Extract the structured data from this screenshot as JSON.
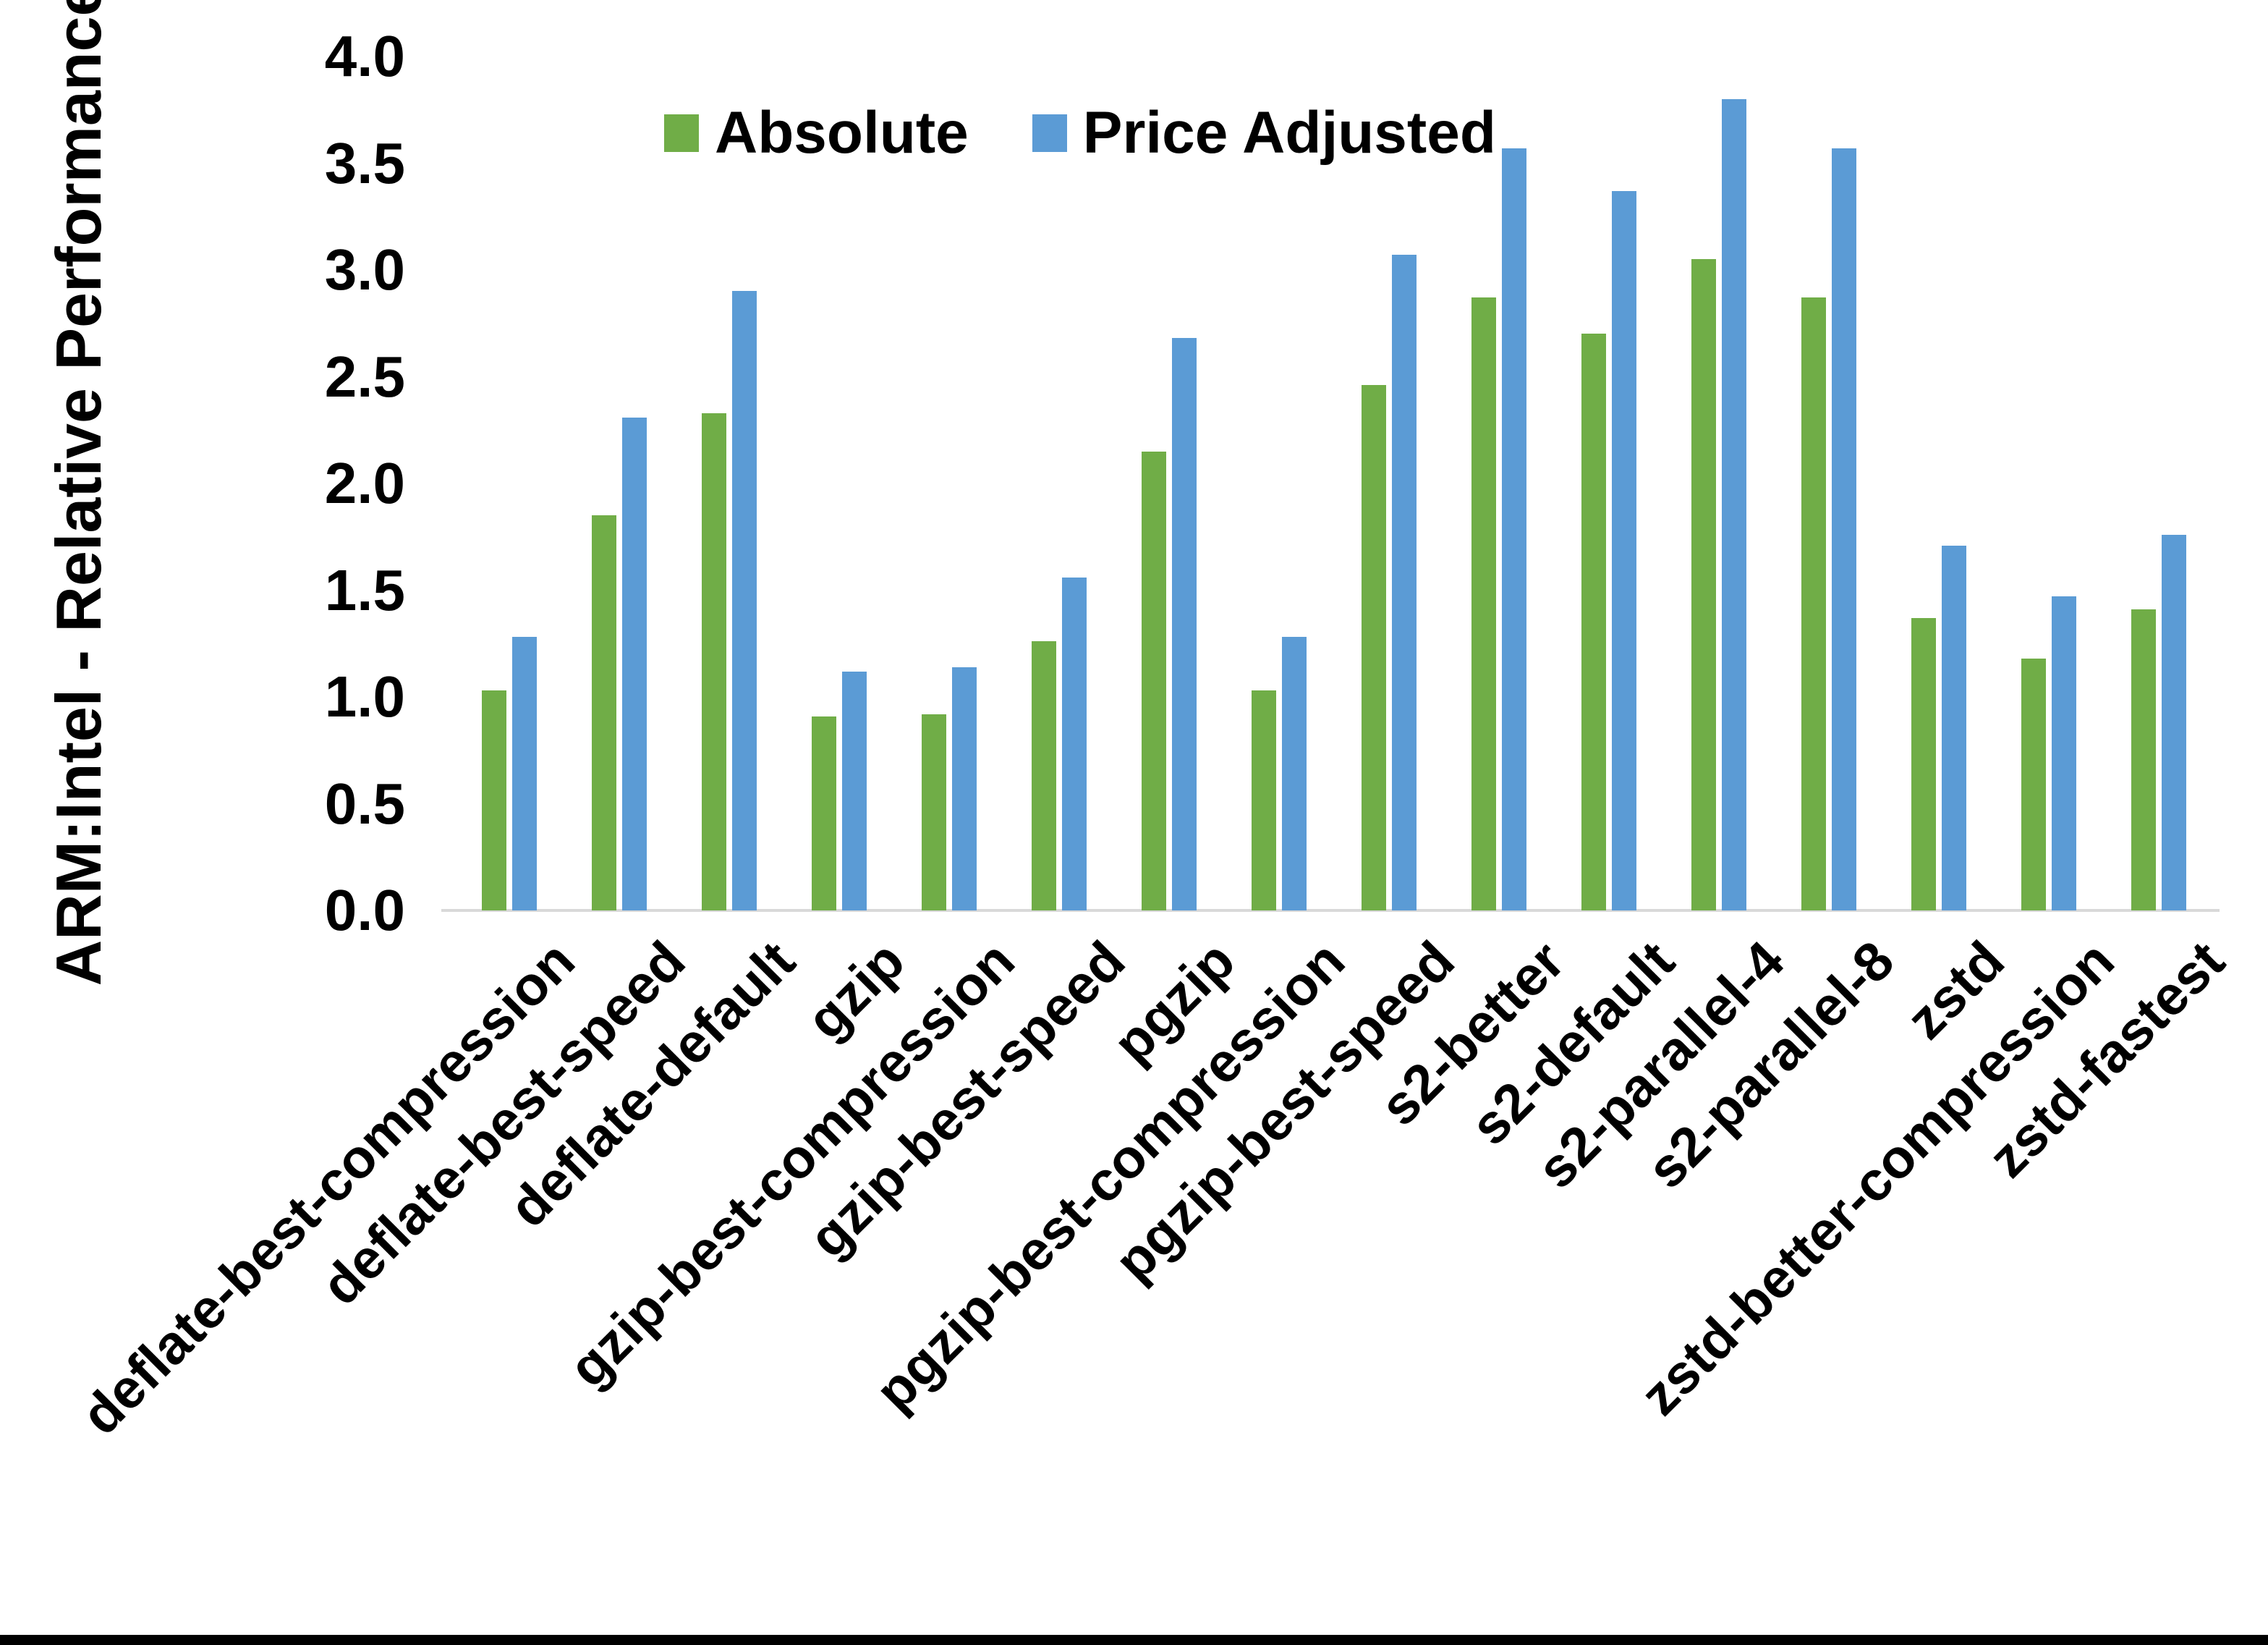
{
  "page": {
    "background": "#ffffff",
    "bottom_border_color": "#000000"
  },
  "y_axis": {
    "title": "ARM:Intel - Relative Performance",
    "ticks": [
      "0.0",
      "0.5",
      "1.0",
      "1.5",
      "2.0",
      "2.5",
      "3.0",
      "3.5",
      "4.0"
    ],
    "axis_line_color": "#d9d9d9"
  },
  "legend": {
    "items": [
      {
        "label": "Absolute",
        "color": "#70AD47"
      },
      {
        "label": "Price Adjusted",
        "color": "#5B9BD5"
      }
    ]
  },
  "chart_data": {
    "type": "bar",
    "title": "",
    "xlabel": "",
    "ylabel": "ARM:Intel - Relative Performance",
    "ylim": [
      0,
      4
    ],
    "ytick_step": 0.5,
    "grid": false,
    "legend_position": "top-center",
    "categories": [
      "deflate-best-compression",
      "deflate-best-speed",
      "deflate-default",
      "gzip",
      "gzip-best-compression",
      "gzip-best-speed",
      "pgzip",
      "pgzip-best-compression",
      "pgzip-best-speed",
      "s2-better",
      "s2-default",
      "s2-parallel-4",
      "s2-parallel-8",
      "zstd",
      "zstd-better-compression",
      "zstd-fastest"
    ],
    "series": [
      {
        "name": "Absolute",
        "color": "#70AD47",
        "values": [
          1.03,
          1.85,
          2.33,
          0.91,
          0.92,
          1.26,
          2.15,
          1.03,
          2.46,
          2.87,
          2.7,
          3.05,
          2.87,
          1.37,
          1.18,
          1.41
        ]
      },
      {
        "name": "Price Adjusted",
        "color": "#5B9BD5",
        "values": [
          1.28,
          2.31,
          2.9,
          1.12,
          1.14,
          1.56,
          2.68,
          1.28,
          3.07,
          3.57,
          3.37,
          3.8,
          3.57,
          1.71,
          1.47,
          1.76
        ]
      }
    ]
  }
}
